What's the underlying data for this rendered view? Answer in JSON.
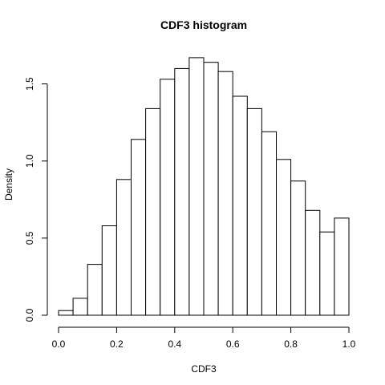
{
  "chart_data": {
    "type": "bar",
    "title": "CDF3  histogram",
    "xlabel": "CDF3",
    "ylabel": "Density",
    "xlim": [
      0.0,
      1.0
    ],
    "ylim": [
      0.0,
      1.68
    ],
    "grid": false,
    "x_ticks": [
      "0.0",
      "0.2",
      "0.4",
      "0.6",
      "0.8",
      "1.0"
    ],
    "y_ticks": [
      "0.0",
      "0.5",
      "1.0",
      "1.5"
    ],
    "bins": [
      {
        "start": 0.0,
        "end": 0.05,
        "density": 0.03
      },
      {
        "start": 0.05,
        "end": 0.1,
        "density": 0.11
      },
      {
        "start": 0.1,
        "end": 0.15,
        "density": 0.33
      },
      {
        "start": 0.15,
        "end": 0.2,
        "density": 0.58
      },
      {
        "start": 0.2,
        "end": 0.25,
        "density": 0.88
      },
      {
        "start": 0.25,
        "end": 0.3,
        "density": 1.14
      },
      {
        "start": 0.3,
        "end": 0.35,
        "density": 1.34
      },
      {
        "start": 0.35,
        "end": 0.4,
        "density": 1.53
      },
      {
        "start": 0.4,
        "end": 0.45,
        "density": 1.6
      },
      {
        "start": 0.45,
        "end": 0.5,
        "density": 1.67
      },
      {
        "start": 0.5,
        "end": 0.55,
        "density": 1.64
      },
      {
        "start": 0.55,
        "end": 0.6,
        "density": 1.58
      },
      {
        "start": 0.6,
        "end": 0.65,
        "density": 1.42
      },
      {
        "start": 0.65,
        "end": 0.7,
        "density": 1.34
      },
      {
        "start": 0.7,
        "end": 0.75,
        "density": 1.19
      },
      {
        "start": 0.75,
        "end": 0.8,
        "density": 1.01
      },
      {
        "start": 0.8,
        "end": 0.85,
        "density": 0.87
      },
      {
        "start": 0.85,
        "end": 0.9,
        "density": 0.68
      },
      {
        "start": 0.9,
        "end": 0.95,
        "density": 0.54
      },
      {
        "start": 0.95,
        "end": 1.0,
        "density": 0.63
      }
    ]
  }
}
